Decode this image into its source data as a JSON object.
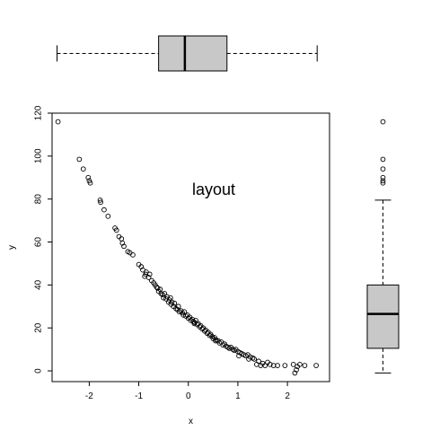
{
  "chart_data": {
    "type": "scatter",
    "annotation": "layout",
    "xlabel": "x",
    "ylabel": "y",
    "xlim": [
      -2.75,
      2.85
    ],
    "ylim": [
      -5,
      120
    ],
    "xticks": [
      -2,
      -1,
      0,
      1,
      2
    ],
    "yticks": [
      0,
      20,
      40,
      60,
      80,
      100,
      120
    ],
    "box_fill": "#c8c8c8",
    "x_boxplot": {
      "min": -2.65,
      "q1": -0.6,
      "median": -0.07,
      "q3": 0.78,
      "max": 2.6
    },
    "y_boxplot": {
      "min": -1,
      "q1": 10.5,
      "median": 26.5,
      "q3": 40,
      "max": 79.5,
      "outliers": [
        116,
        98.5,
        94,
        90,
        88.5,
        87.5
      ]
    },
    "points": [
      [
        -2.63,
        116
      ],
      [
        -2.2,
        98.5
      ],
      [
        -2.12,
        94
      ],
      [
        -2.02,
        90
      ],
      [
        -2.0,
        88.5
      ],
      [
        -1.98,
        87.5
      ],
      [
        -1.78,
        79.5
      ],
      [
        -1.77,
        78.5
      ],
      [
        -1.7,
        75
      ],
      [
        -1.62,
        72
      ],
      [
        -1.48,
        66.5
      ],
      [
        -1.45,
        65.5
      ],
      [
        -1.4,
        62.5
      ],
      [
        -1.35,
        61.5
      ],
      [
        -1.33,
        59.5
      ],
      [
        -1.3,
        58
      ],
      [
        -1.22,
        55.5
      ],
      [
        -1.18,
        55
      ],
      [
        -1.12,
        54
      ],
      [
        -1.0,
        49.5
      ],
      [
        -0.95,
        48.5
      ],
      [
        -0.92,
        47
      ],
      [
        -0.88,
        44
      ],
      [
        -0.85,
        46
      ],
      [
        -0.8,
        43.5
      ],
      [
        -0.78,
        45
      ],
      [
        -0.74,
        42
      ],
      [
        -0.7,
        41
      ],
      [
        -0.67,
        40
      ],
      [
        -0.64,
        39
      ],
      [
        -0.62,
        38.5
      ],
      [
        -0.6,
        37
      ],
      [
        -0.57,
        38
      ],
      [
        -0.55,
        36
      ],
      [
        -0.52,
        35.5
      ],
      [
        -0.5,
        34
      ],
      [
        -0.48,
        36
      ],
      [
        -0.45,
        33.5
      ],
      [
        -0.43,
        34.5
      ],
      [
        -0.4,
        32
      ],
      [
        -0.38,
        33
      ],
      [
        -0.35,
        31
      ],
      [
        -0.33,
        32
      ],
      [
        -0.3,
        30
      ],
      [
        -0.28,
        31.5
      ],
      [
        -0.25,
        29
      ],
      [
        -0.22,
        28.5
      ],
      [
        -0.2,
        30
      ],
      [
        -0.18,
        27.5
      ],
      [
        -0.15,
        28
      ],
      [
        -0.12,
        27
      ],
      [
        -0.1,
        26
      ],
      [
        -0.08,
        27.5
      ],
      [
        -0.05,
        25.5
      ],
      [
        -0.02,
        26
      ],
      [
        0.0,
        24.5
      ],
      [
        0.03,
        25
      ],
      [
        0.05,
        23.5
      ],
      [
        0.08,
        24
      ],
      [
        0.1,
        23
      ],
      [
        0.13,
        22.5
      ],
      [
        0.15,
        23.5
      ],
      [
        0.18,
        21.5
      ],
      [
        0.2,
        22
      ],
      [
        0.23,
        20.5
      ],
      [
        0.25,
        21
      ],
      [
        0.28,
        19.5
      ],
      [
        0.3,
        20
      ],
      [
        0.33,
        18.5
      ],
      [
        0.35,
        19
      ],
      [
        0.38,
        17.5
      ],
      [
        0.4,
        18
      ],
      [
        0.43,
        16.5
      ],
      [
        0.45,
        17
      ],
      [
        0.48,
        16
      ],
      [
        0.5,
        15
      ],
      [
        0.53,
        15.5
      ],
      [
        0.56,
        14.5
      ],
      [
        0.6,
        14
      ],
      [
        0.63,
        13
      ],
      [
        0.66,
        13.5
      ],
      [
        0.7,
        12
      ],
      [
        0.73,
        12.5
      ],
      [
        0.76,
        11.5
      ],
      [
        0.8,
        11
      ],
      [
        0.83,
        10.5
      ],
      [
        0.86,
        11
      ],
      [
        0.9,
        10
      ],
      [
        0.93,
        9.5
      ],
      [
        0.96,
        10
      ],
      [
        1.0,
        9
      ],
      [
        1.04,
        8.5
      ],
      [
        1.08,
        8
      ],
      [
        1.12,
        7.5
      ],
      [
        1.16,
        7
      ],
      [
        1.2,
        7.5
      ],
      [
        1.25,
        6.5
      ],
      [
        1.3,
        6
      ],
      [
        1.33,
        5.5
      ],
      [
        1.38,
        3
      ],
      [
        1.42,
        4.5
      ],
      [
        1.46,
        2.5
      ],
      [
        1.5,
        3.5
      ],
      [
        1.55,
        2.5
      ],
      [
        1.6,
        4
      ],
      [
        1.65,
        3
      ],
      [
        1.72,
        2.5
      ],
      [
        1.8,
        2.5
      ],
      [
        1.95,
        2.5
      ],
      [
        2.12,
        3
      ],
      [
        2.15,
        -1
      ],
      [
        2.18,
        0.5
      ],
      [
        2.2,
        2
      ],
      [
        2.25,
        3
      ],
      [
        2.35,
        2.5
      ],
      [
        2.58,
        2.5
      ],
      [
        1.02,
        7
      ],
      [
        0.12,
        22
      ],
      [
        -0.36,
        34
      ],
      [
        -0.86,
        45
      ],
      [
        0.55,
        14
      ],
      [
        1.22,
        5.5
      ]
    ]
  }
}
